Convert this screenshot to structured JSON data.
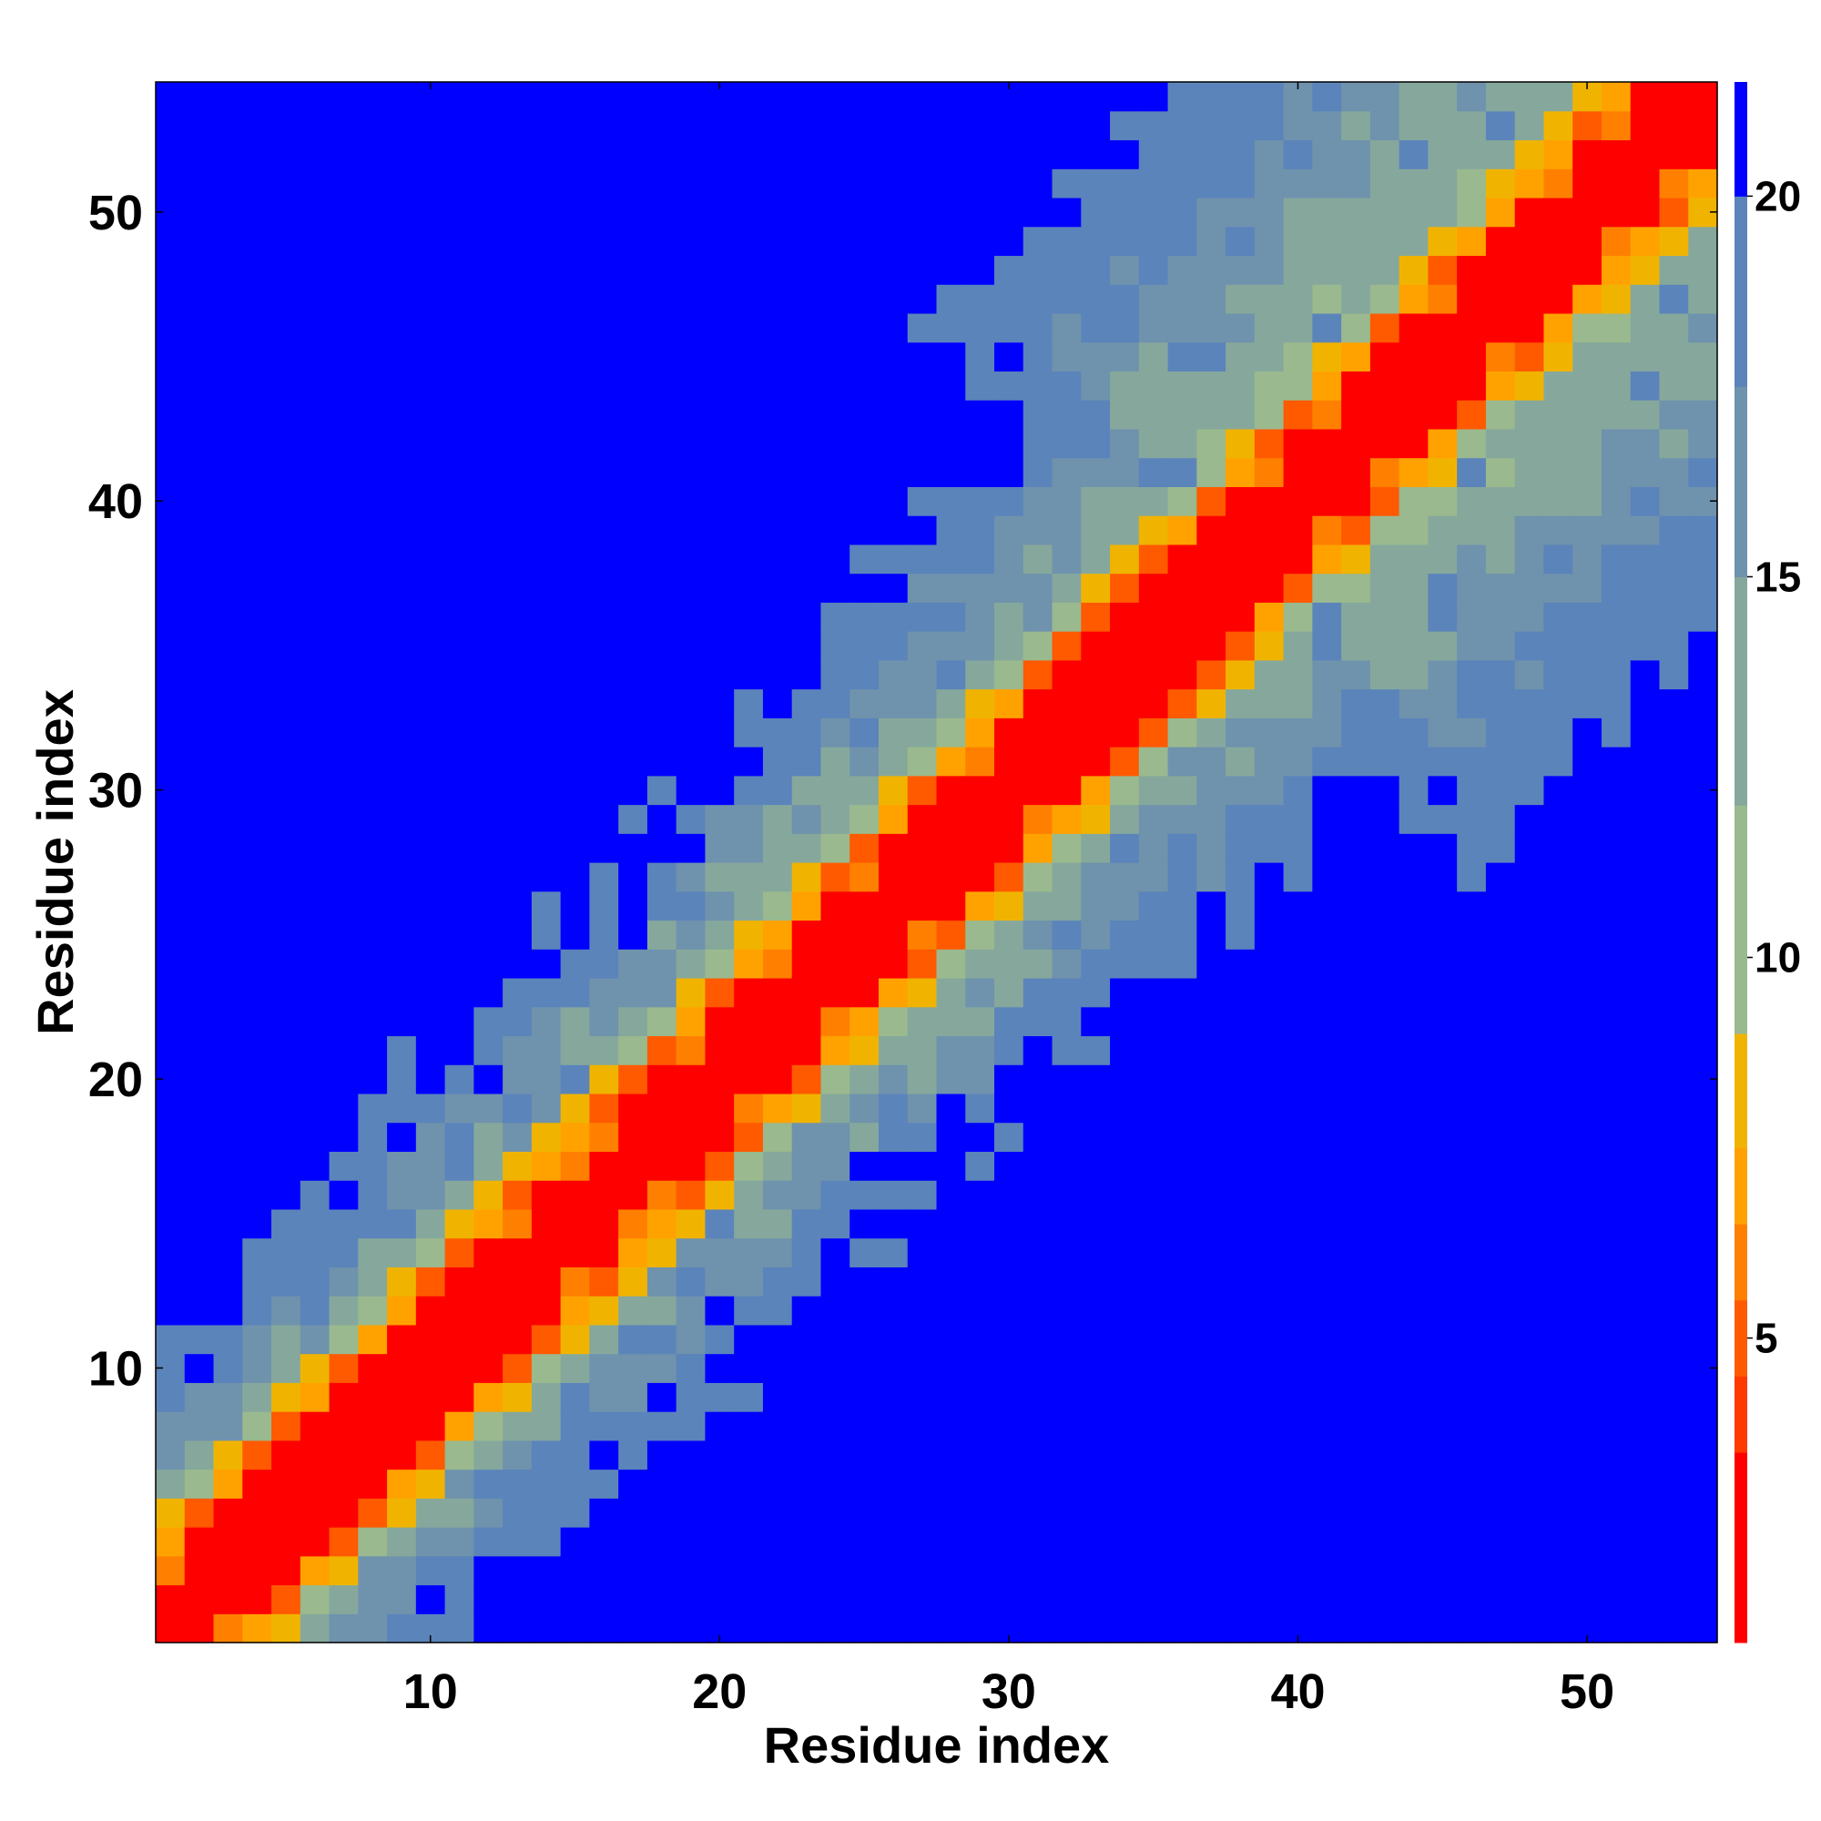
{
  "chart_data": {
    "type": "heatmap",
    "title": "",
    "xlabel": "Residue index",
    "ylabel": "Residue index",
    "n_residues": 54,
    "xlim": [
      0.5,
      54.5
    ],
    "ylim": [
      0.5,
      54.5
    ],
    "x_ticks": [
      10,
      20,
      30,
      40,
      50
    ],
    "y_ticks": [
      10,
      20,
      30,
      40,
      50
    ],
    "colorbar": {
      "range": [
        1,
        21.5
      ],
      "ticks": [
        5,
        10,
        15,
        20
      ],
      "levels": [
        {
          "from": 1.0,
          "to": 3.5,
          "color": "#ff0000"
        },
        {
          "from": 3.5,
          "to": 4.5,
          "color": "#ff3a00"
        },
        {
          "from": 4.5,
          "to": 5.5,
          "color": "#ff5a00"
        },
        {
          "from": 5.5,
          "to": 6.5,
          "color": "#ff8000"
        },
        {
          "from": 6.5,
          "to": 7.5,
          "color": "#ffa200"
        },
        {
          "from": 7.5,
          "to": 9.0,
          "color": "#f0b400"
        },
        {
          "from": 9.0,
          "to": 12.0,
          "color": "#9ab98e"
        },
        {
          "from": 12.0,
          "to": 15.0,
          "color": "#86a89c"
        },
        {
          "from": 15.0,
          "to": 17.5,
          "color": "#6f92ad"
        },
        {
          "from": 17.5,
          "to": 20.0,
          "color": "#5b84bb"
        },
        {
          "from": 20.0,
          "to": 21.5,
          "color": "#0000ff"
        }
      ]
    },
    "description_of_values": "Symmetric residue-residue distance map; values are smallest on the diagonal (red) and increase away from it, saturating at the maximum (blue).",
    "band": [
      {
        "max_offset": 0,
        "value": 2
      },
      {
        "max_offset": 2,
        "value": 3
      }
    ],
    "saturation_value": 21
  }
}
